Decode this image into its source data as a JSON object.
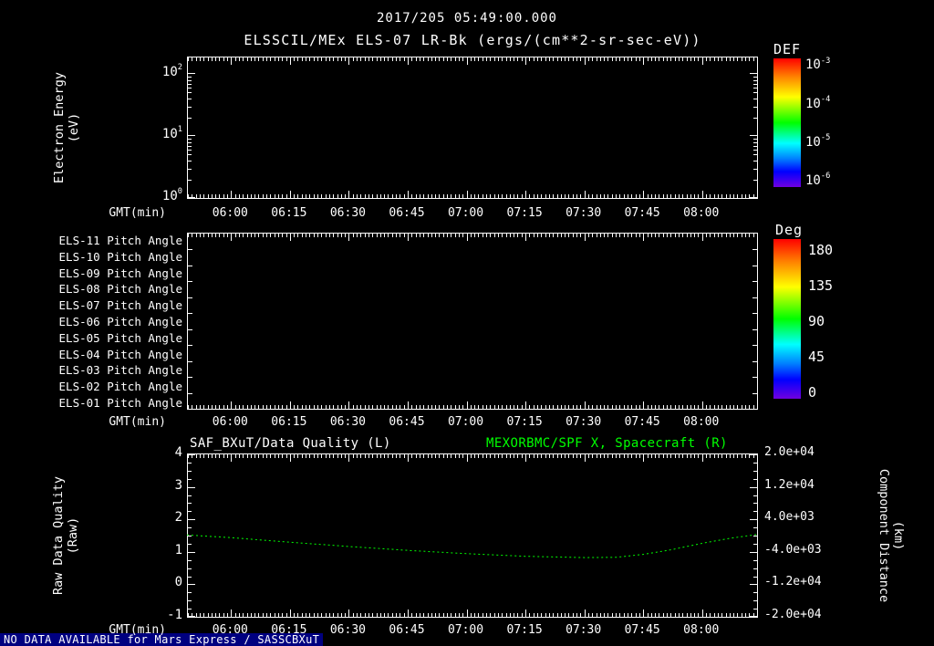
{
  "header": {
    "timestamp": "2017/205 05:49:00.000",
    "title": "ELSSCIL/MEx ELS-07 LR-Bk (ergs/(cm**2-sr-sec-eV))"
  },
  "time_axis": {
    "label": "GMT(min)",
    "start": "05:49",
    "end": "08:14",
    "start_min": 349,
    "end_min": 494,
    "ticks": [
      "06:00",
      "06:15",
      "06:30",
      "06:45",
      "07:00",
      "07:15",
      "07:30",
      "07:45",
      "08:00"
    ]
  },
  "panel1": {
    "ylabel_lines": [
      "Electron Energy",
      "(eV)"
    ],
    "y_ticks": [
      "10^2",
      "10^1",
      "10^0"
    ],
    "colorbar": {
      "title": "DEF",
      "ticks": [
        "10^-3",
        "10^-4",
        "10^-5",
        "10^-6"
      ]
    }
  },
  "panel2": {
    "row_labels": [
      "ELS-11 Pitch Angle",
      "ELS-10 Pitch Angle",
      "ELS-09 Pitch Angle",
      "ELS-08 Pitch Angle",
      "ELS-07 Pitch Angle",
      "ELS-06 Pitch Angle",
      "ELS-05 Pitch Angle",
      "ELS-04 Pitch Angle",
      "ELS-03 Pitch Angle",
      "ELS-02 Pitch Angle",
      "ELS-01 Pitch Angle"
    ],
    "colorbar": {
      "title": "Deg",
      "ticks": [
        "180",
        "135",
        "90",
        "45",
        "0"
      ]
    }
  },
  "panel3": {
    "title_left": "SAF_BXuT/Data Quality (L)",
    "title_right": "MEXORBMC/SPF X, Spacecraft (R)",
    "ylabel_left_lines": [
      "Raw Data Quality",
      "(Raw)"
    ],
    "ylabel_right_lines": [
      "Component Distance",
      "(km)"
    ],
    "y_ticks_left": [
      "4",
      "3",
      "2",
      "1",
      "0",
      "-1"
    ],
    "y_ticks_right": [
      "2.0e+04",
      "1.2e+04",
      "4.0e+03",
      "-4.0e+03",
      "-1.2e+04",
      "-2.0e+04"
    ]
  },
  "status_bar": {
    "text": "NO DATA AVAILABLE for Mars Express / SASSCBXuT"
  },
  "colors": {
    "background": "#000000",
    "foreground": "#ffffff",
    "series_green": "#00ff00",
    "status_bg": "#000080"
  },
  "chart_data": [
    {
      "type": "heatmap",
      "title": "ELSSCIL/MEx ELS-07 LR-Bk",
      "units": "ergs/(cm**2-sr-sec-eV)",
      "xlabel": "GMT(min)",
      "x_range": [
        "05:49",
        "08:14"
      ],
      "x_ticks": [
        "06:00",
        "06:15",
        "06:30",
        "06:45",
        "07:00",
        "07:15",
        "07:30",
        "07:45",
        "08:00"
      ],
      "ylabel": "Electron Energy (eV)",
      "y_scale": "log",
      "y_ticks": [
        "10^2",
        "10^1",
        "10^0"
      ],
      "ylim": [
        1,
        200
      ],
      "colorbar": {
        "title": "DEF",
        "ticks": [
          "10^-3",
          "10^-4",
          "10^-5",
          "10^-6"
        ]
      },
      "values": []
    },
    {
      "type": "heatmap",
      "rows": [
        "ELS-11 Pitch Angle",
        "ELS-10 Pitch Angle",
        "ELS-09 Pitch Angle",
        "ELS-08 Pitch Angle",
        "ELS-07 Pitch Angle",
        "ELS-06 Pitch Angle",
        "ELS-05 Pitch Angle",
        "ELS-04 Pitch Angle",
        "ELS-03 Pitch Angle",
        "ELS-02 Pitch Angle",
        "ELS-01 Pitch Angle"
      ],
      "xlabel": "GMT(min)",
      "x_range": [
        "05:49",
        "08:14"
      ],
      "x_ticks": [
        "06:00",
        "06:15",
        "06:30",
        "06:45",
        "07:00",
        "07:15",
        "07:30",
        "07:45",
        "08:00"
      ],
      "colorbar": {
        "title": "Deg",
        "ticks": [
          180,
          135,
          90,
          45,
          0
        ]
      },
      "values": []
    },
    {
      "type": "line",
      "titles": {
        "left": "SAF_BXuT/Data Quality (L)",
        "right": "MEXORBMC/SPF X, Spacecraft (R)"
      },
      "xlabel": "GMT(min)",
      "x_range": [
        "05:49",
        "08:14"
      ],
      "x_ticks": [
        "06:00",
        "06:15",
        "06:30",
        "06:45",
        "07:00",
        "07:15",
        "07:30",
        "07:45",
        "08:00"
      ],
      "left_axis": {
        "label": "Raw Data Quality (Raw)",
        "lim": [
          -1,
          4
        ],
        "ticks": [
          4,
          3,
          2,
          1,
          0,
          -1
        ]
      },
      "right_axis": {
        "label": "Component Distance (km)",
        "lim": [
          -20000,
          20000
        ],
        "ticks": [
          20000,
          12000,
          4000,
          -4000,
          -12000,
          -20000
        ]
      },
      "series": [
        {
          "name": "MEXORBMC/SPF X, Spacecraft",
          "axis": "right",
          "color": "#00ff00",
          "line_style": "dotted",
          "x_minutes": [
            349,
            360,
            375,
            390,
            405,
            420,
            435,
            450,
            458,
            465,
            472,
            480,
            487,
            494
          ],
          "x_labels": [
            "05:49",
            "06:00",
            "06:15",
            "06:30",
            "06:45",
            "07:00",
            "07:15",
            "07:30",
            "07:38",
            "07:45",
            "07:52",
            "08:00",
            "08:07",
            "08:14"
          ],
          "y_km": [
            160,
            -480,
            -1600,
            -2640,
            -3600,
            -4400,
            -5040,
            -5360,
            -5280,
            -4560,
            -3440,
            -1840,
            -640,
            320
          ],
          "y_left_axis_equiv": [
            1.52,
            1.44,
            1.3,
            1.17,
            1.05,
            0.95,
            0.87,
            0.83,
            0.84,
            0.93,
            1.07,
            1.27,
            1.42,
            1.54
          ]
        }
      ]
    }
  ]
}
